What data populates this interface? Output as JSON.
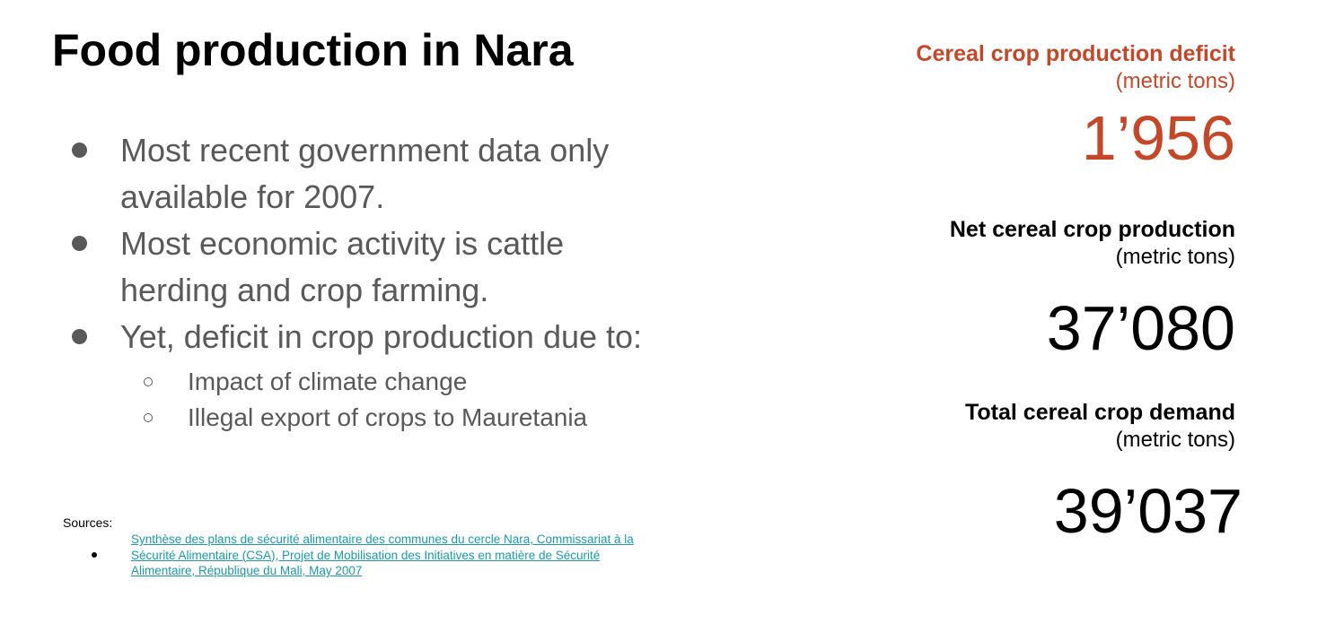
{
  "title": "Food production in Nara",
  "bullets": [
    {
      "text": "Most recent government data only available for 2007."
    },
    {
      "text": "Most economic activity is cattle herding and crop farming."
    },
    {
      "text": "Yet, deficit in crop production due to:"
    }
  ],
  "sub_bullets": [
    "Impact of climate change",
    "Illegal export of crops to Mauretania"
  ],
  "sources": {
    "label": "Sources:",
    "items": [
      "Synthèse des plans de sécurité alimentaire des communes du cercle Nara, Commissariat à la Sécurité Alimentaire (CSA), Projet de Mobilisation des Initiatives en matière de Sécurité Alimentaire, République du Mali, May 2007"
    ]
  },
  "stats": {
    "deficit": {
      "label": "Cereal crop production deficit",
      "unit": "(metric tons)",
      "value": "1’956"
    },
    "net": {
      "label": "Net cereal crop production",
      "unit": "(metric tons)",
      "value": "37’080"
    },
    "demand": {
      "label": "Total cereal crop demand",
      "unit": "(metric tons)",
      "value": "39’037"
    }
  },
  "colors": {
    "accent": "#c44727",
    "body_text": "#595959",
    "link": "#1a9aa8"
  }
}
